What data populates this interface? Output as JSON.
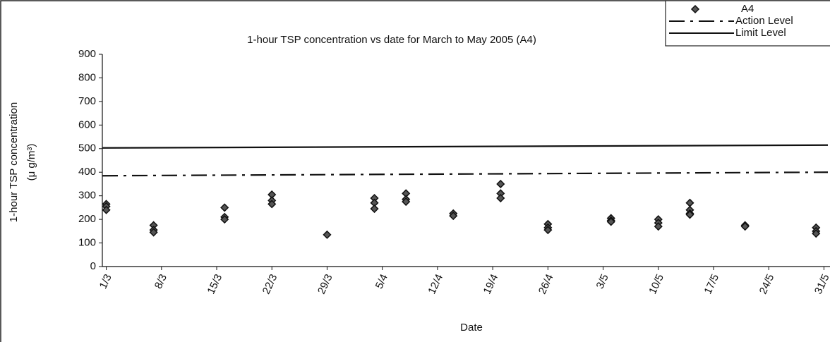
{
  "chart_data": {
    "type": "scatter",
    "title": "1-hour TSP concentration vs date for March to May 2005 (A4)",
    "xlabel": "Date",
    "ylabel": [
      "1-hour TSP concentration",
      "(μ g/m³)"
    ],
    "xlim": [
      -0.5,
      91.5
    ],
    "xticks": [
      {
        "value": 0,
        "label": "1/3"
      },
      {
        "value": 7,
        "label": "8/3"
      },
      {
        "value": 14,
        "label": "15/3"
      },
      {
        "value": 21,
        "label": "22/3"
      },
      {
        "value": 28,
        "label": "29/3"
      },
      {
        "value": 35,
        "label": "5/4"
      },
      {
        "value": 42,
        "label": "12/4"
      },
      {
        "value": 49,
        "label": "19/4"
      },
      {
        "value": 56,
        "label": "26/4"
      },
      {
        "value": 63,
        "label": "3/5"
      },
      {
        "value": 70,
        "label": "10/5"
      },
      {
        "value": 77,
        "label": "17/5"
      },
      {
        "value": 84,
        "label": "24/5"
      },
      {
        "value": 91,
        "label": "31/5"
      }
    ],
    "ylim": [
      0,
      900
    ],
    "yticks": [
      0,
      100,
      200,
      300,
      400,
      500,
      600,
      700,
      800,
      900
    ],
    "legend": "top-right",
    "series": [
      {
        "name": "A4",
        "type": "scatter",
        "color": "#111111",
        "x": [
          0,
          0,
          0,
          6,
          6,
          6,
          15,
          15,
          15,
          21,
          21,
          21,
          28,
          34,
          34,
          34,
          38,
          38,
          38,
          44,
          44,
          50,
          50,
          50,
          56,
          56,
          56,
          64,
          64,
          64,
          70,
          70,
          70,
          74,
          74,
          74,
          74,
          81,
          81,
          90,
          90,
          90
        ],
        "values": [
          265,
          255,
          240,
          175,
          155,
          145,
          250,
          210,
          200,
          305,
          280,
          265,
          135,
          290,
          270,
          245,
          310,
          285,
          275,
          225,
          215,
          350,
          310,
          290,
          180,
          165,
          155,
          205,
          195,
          190,
          200,
          185,
          170,
          270,
          240,
          225,
          220,
          175,
          170,
          165,
          150,
          140
        ]
      },
      {
        "name": "Action Level",
        "type": "line",
        "dash": "dashdot",
        "color": "#111111",
        "x": [
          -0.5,
          91.5
        ],
        "values": [
          385,
          400
        ]
      },
      {
        "name": "Limit Level",
        "type": "line",
        "dash": "solid",
        "color": "#111111",
        "x": [
          -0.5,
          91.5
        ],
        "values": [
          503,
          515
        ]
      }
    ]
  }
}
